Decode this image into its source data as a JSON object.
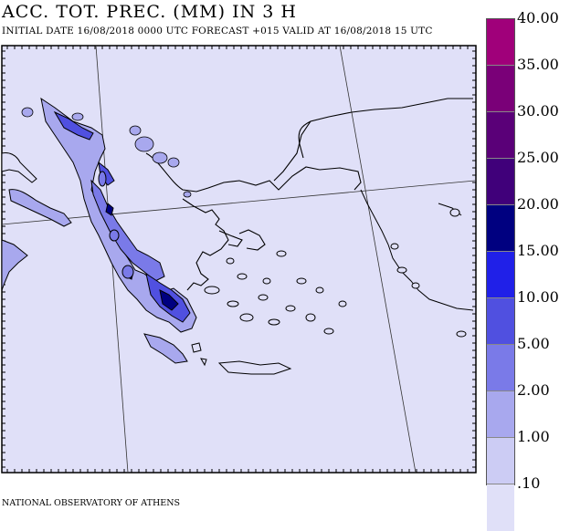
{
  "header": {
    "title": "ACC. TOT. PREC. (MM) IN 3 H",
    "subtitle": "INITIAL DATE 16/08/2018   0000 UTC FORECAST +015 VALID AT  16/08/2018  15 UTC"
  },
  "footer": {
    "credit": "NATIONAL OBSERVATORY OF ATHENS"
  },
  "legend": {
    "labels": [
      "40.00",
      "35.00",
      "30.00",
      "25.00",
      "20.00",
      "15.00",
      "10.00",
      "5.00",
      "2.00",
      "1.00",
      ".10"
    ],
    "colors": [
      "#a0007a",
      "#7a0078",
      "#5a0078",
      "#40007a",
      "#000080",
      "#2020e8",
      "#5050e0",
      "#7a7ae8",
      "#a8a8ee",
      "#ccccf4",
      "#e0e0f8"
    ]
  },
  "map": {
    "background_color": "#e0e0f8",
    "coast_color": "#000000",
    "precip_colors": {
      "light": "#a8a8ee",
      "medium": "#7a7ae8",
      "heavy": "#5050e0",
      "intense": "#000080"
    }
  }
}
